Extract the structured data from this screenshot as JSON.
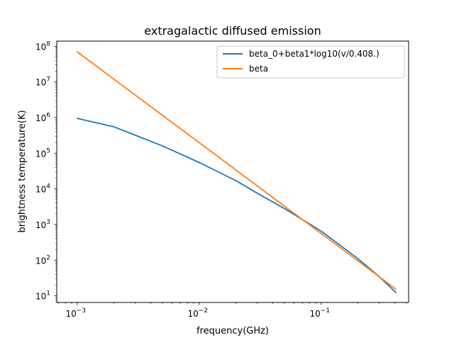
{
  "chart_data": {
    "type": "line",
    "title": "extragalactic diffused emission",
    "xlabel": "frequency(GHz)",
    "ylabel": "brightness temperature(K)",
    "xscale": "log",
    "yscale": "log",
    "xlim": [
      0.00068,
      0.52
    ],
    "ylim": [
      6.5,
      140000000
    ],
    "grid": false,
    "legend_position": "top-right",
    "x_ticks": [
      {
        "base": "10",
        "exp": "−3",
        "value": 0.001
      },
      {
        "base": "10",
        "exp": "−2",
        "value": 0.01
      },
      {
        "base": "10",
        "exp": "−1",
        "value": 0.1
      }
    ],
    "y_ticks": [
      {
        "base": "10",
        "exp": "1",
        "value": 10
      },
      {
        "base": "10",
        "exp": "2",
        "value": 100
      },
      {
        "base": "10",
        "exp": "3",
        "value": 1000
      },
      {
        "base": "10",
        "exp": "4",
        "value": 10000
      },
      {
        "base": "10",
        "exp": "5",
        "value": 100000
      },
      {
        "base": "10",
        "exp": "6",
        "value": 1000000
      },
      {
        "base": "10",
        "exp": "7",
        "value": 10000000
      },
      {
        "base": "10",
        "exp": "8",
        "value": 100000000
      }
    ],
    "series": [
      {
        "name": "beta_0+beta1*log10(v/0.408.)",
        "color": "#1f77b4",
        "x": [
          0.001,
          0.002,
          0.003,
          0.005,
          0.01,
          0.02,
          0.03,
          0.05,
          0.1,
          0.2,
          0.3,
          0.408
        ],
        "y": [
          950000,
          550000,
          320000,
          160000,
          55000,
          17000,
          7500,
          2800,
          650,
          110,
          34,
          12.5
        ]
      },
      {
        "name": "beta",
        "color": "#ff7f0e",
        "x": [
          0.001,
          0.408
        ],
        "y": [
          70000000,
          15.5
        ]
      }
    ]
  }
}
